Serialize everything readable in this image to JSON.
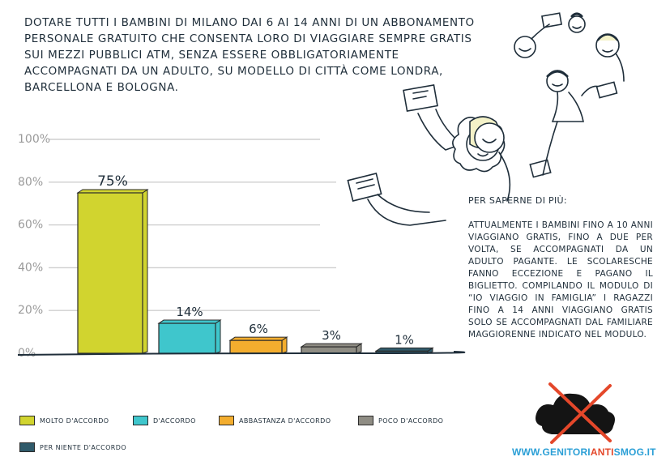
{
  "question": "Dotare tutti i bambini di Milano dai 6 ai 14 anni di un abbonamento personale gratuito che consenta loro di viaggiare sempre gratis sui mezzi pubblici ATM, senza essere obbligatoriamente accompagnati da un adulto, su modello di città come Londra, Barcellona e Bologna.",
  "info": {
    "heading": "Per saperne di più:",
    "body": "Attualmente i bambini fino a 10 anni viaggiano gratis, fino a due per volta, se accompagnati da un adulto pagante. Le scolaresche fanno eccezione e pagano il biglietto. Compilando il modulo di “Io viaggio in famiglia” i ragazzi fino a 14 anni viaggiano gratis solo se accompagnati dal familiare maggiorenne indicato nel modulo."
  },
  "footer": {
    "url_prefix": "WWW.",
    "url_mid1": "GENITORI",
    "url_mid2": "ANTI",
    "url_mid3": "SMOG",
    "url_suffix": ".IT"
  },
  "chart_data": {
    "type": "bar",
    "categories": [
      "Molto d'accordo",
      "D'accordo",
      "Abbastanza d'accordo",
      "Poco d'accordo",
      "Per niente d'accordo"
    ],
    "values": [
      75,
      14,
      6,
      3,
      1
    ],
    "value_labels": [
      "75%",
      "14%",
      "6%",
      "3%",
      "1%"
    ],
    "colors": [
      "#d1d42f",
      "#3fc6cc",
      "#f3ad2e",
      "#8f8d84",
      "#305a6a"
    ],
    "yticks": [
      "0%",
      "20%",
      "40%",
      "60%",
      "80%",
      "100%"
    ],
    "ylim": [
      0,
      100
    ],
    "grid": true,
    "legend_position": "bottom"
  }
}
